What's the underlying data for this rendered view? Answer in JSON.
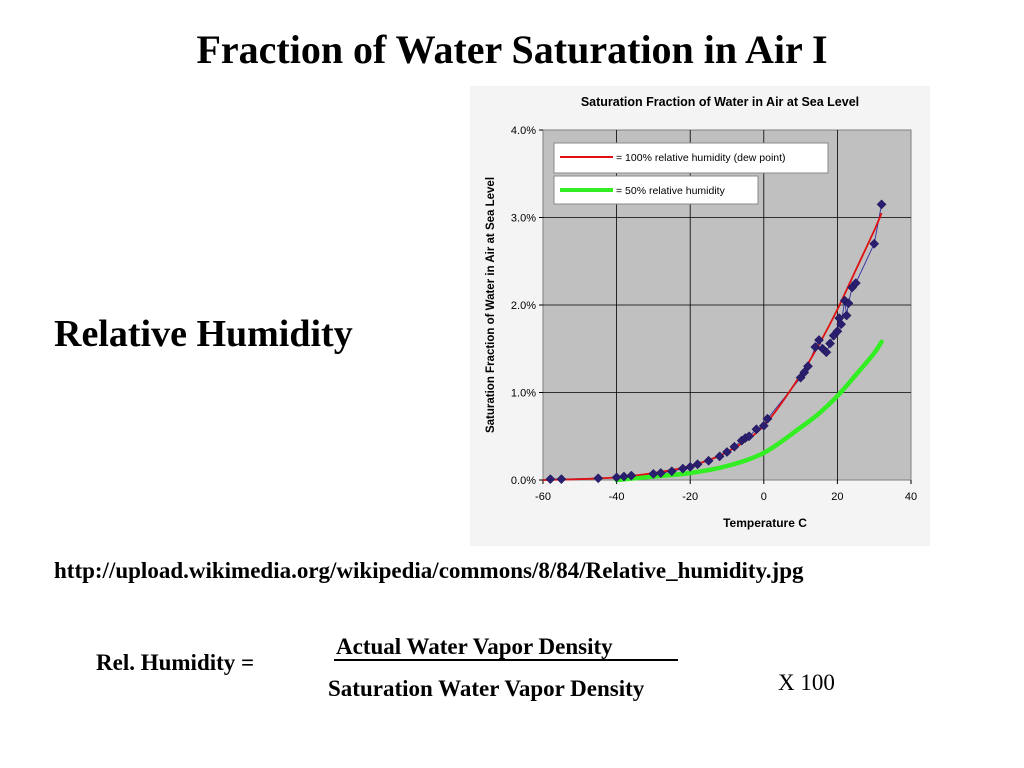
{
  "slide": {
    "title": "Fraction of Water Saturation in Air I",
    "heading": "Relative Humidity",
    "source_url": "http://upload.wikimedia.org/wikipedia/commons/8/84/Relative_humidity.jpg",
    "formula": {
      "lhs": "Rel. Humidity =",
      "numerator": "Actual Water Vapor Density",
      "denominator": "Saturation Water Vapor Density",
      "multiplier": "X 100"
    }
  },
  "chart_data": {
    "type": "scatter",
    "title": "Saturation Fraction of Water in Air at Sea Level",
    "xlabel": "Temperature C",
    "ylabel": "Saturation Fraction of Water in Air at Sea Level",
    "xlim": [
      -60,
      40
    ],
    "ylim": [
      0,
      4
    ],
    "x_ticks": [
      -60,
      -40,
      -20,
      0,
      20,
      40
    ],
    "y_ticks": [
      0,
      1,
      2,
      3,
      4
    ],
    "x_tick_labels": [
      "-60",
      "-40",
      "-20",
      "0",
      "20",
      "40"
    ],
    "y_tick_labels": [
      "0.0%",
      "1.0%",
      "2.0%",
      "3.0%",
      "4.0%"
    ],
    "grid": true,
    "legend_position": "top-left",
    "legend": [
      "= 100% relative humidity (dew point)",
      "= 50% relative humidity"
    ],
    "colors": {
      "plot_background": "#c0c0c0",
      "dew_point_line": "#e01010",
      "half_humidity_line": "#33ee22",
      "measured_points": "#2a1f6e"
    },
    "series": [
      {
        "name": "measured",
        "style": "diamond markers joined by thin line",
        "points": [
          [
            -58,
            0.01
          ],
          [
            -55,
            0.01
          ],
          [
            -45,
            0.02
          ],
          [
            -40,
            0.03
          ],
          [
            -38,
            0.04
          ],
          [
            -36,
            0.05
          ],
          [
            -30,
            0.07
          ],
          [
            -28,
            0.08
          ],
          [
            -25,
            0.1
          ],
          [
            -22,
            0.13
          ],
          [
            -20,
            0.15
          ],
          [
            -18,
            0.18
          ],
          [
            -15,
            0.22
          ],
          [
            -12,
            0.27
          ],
          [
            -10,
            0.32
          ],
          [
            -8,
            0.38
          ],
          [
            -6,
            0.45
          ],
          [
            -5,
            0.48
          ],
          [
            -4,
            0.5
          ],
          [
            -2,
            0.58
          ],
          [
            0,
            0.62
          ],
          [
            1,
            0.7
          ],
          [
            10,
            1.17
          ],
          [
            11,
            1.23
          ],
          [
            12,
            1.3
          ],
          [
            14,
            1.52
          ],
          [
            15,
            1.6
          ],
          [
            16,
            1.5
          ],
          [
            17,
            1.46
          ],
          [
            18,
            1.56
          ],
          [
            19,
            1.65
          ],
          [
            20,
            1.7
          ],
          [
            20.5,
            1.85
          ],
          [
            21,
            1.78
          ],
          [
            22,
            2.05
          ],
          [
            22.5,
            1.88
          ],
          [
            23,
            2.02
          ],
          [
            24,
            2.2
          ],
          [
            25,
            2.25
          ],
          [
            30,
            2.7
          ],
          [
            32,
            3.15
          ]
        ]
      },
      {
        "name": "= 100% relative humidity (dew point)",
        "x": [
          -60,
          -50,
          -40,
          -30,
          -20,
          -10,
          0,
          10,
          15,
          20,
          25,
          30,
          32
        ],
        "y": [
          0.0,
          0.01,
          0.03,
          0.08,
          0.16,
          0.32,
          0.62,
          1.2,
          1.55,
          1.95,
          2.4,
          2.85,
          3.05
        ]
      },
      {
        "name": "= 50% relative humidity",
        "x": [
          -40,
          -30,
          -20,
          -10,
          0,
          10,
          15,
          20,
          25,
          30,
          32
        ],
        "y": [
          0.0,
          0.04,
          0.08,
          0.16,
          0.31,
          0.6,
          0.76,
          0.96,
          1.2,
          1.45,
          1.58
        ]
      }
    ]
  }
}
